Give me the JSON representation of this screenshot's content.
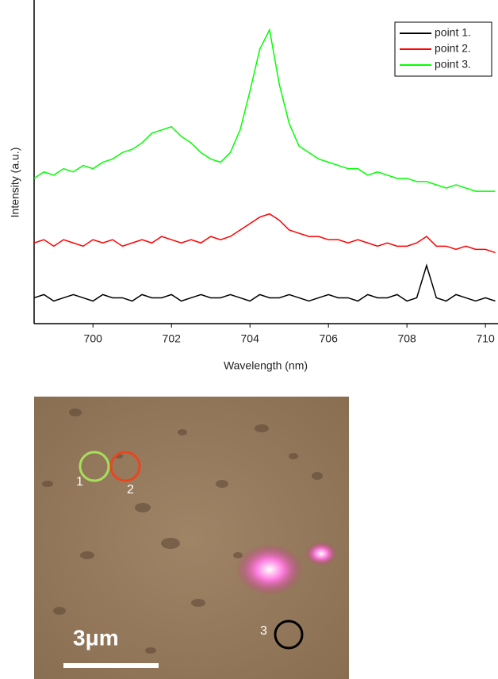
{
  "chart_data": {
    "type": "line",
    "x_label": "Wavelength (nm)",
    "y_label": "Intensity (a.u.)",
    "x": [
      698.5,
      698.75,
      699,
      699.25,
      699.5,
      699.75,
      700,
      700.25,
      700.5,
      700.75,
      701,
      701.25,
      701.5,
      701.75,
      702,
      702.25,
      702.5,
      702.75,
      703,
      703.25,
      703.5,
      703.75,
      704,
      704.25,
      704.5,
      704.75,
      705,
      705.25,
      705.5,
      705.75,
      706,
      706.25,
      706.5,
      706.75,
      707,
      707.25,
      707.5,
      707.75,
      708,
      708.25,
      708.5,
      708.75,
      709,
      709.25,
      709.5,
      709.75,
      710,
      710.25
    ],
    "series": [
      {
        "name": "point 1.",
        "color": "#000000",
        "values": [
          8,
          9,
          7,
          8,
          9,
          8,
          7,
          9,
          8,
          8,
          7,
          9,
          8,
          8,
          9,
          7,
          8,
          9,
          8,
          8,
          9,
          8,
          7,
          9,
          8,
          8,
          9,
          8,
          7,
          8,
          9,
          8,
          8,
          7,
          9,
          8,
          8,
          9,
          7,
          8,
          18,
          8,
          7,
          9,
          8,
          7,
          8,
          7
        ]
      },
      {
        "name": "point 2.",
        "color": "#ff0000",
        "values": [
          25,
          26,
          24,
          26,
          25,
          24,
          26,
          25,
          26,
          24,
          25,
          26,
          25,
          27,
          26,
          25,
          26,
          25,
          27,
          26,
          27,
          29,
          31,
          33,
          34,
          32,
          29,
          28,
          27,
          27,
          26,
          26,
          25,
          26,
          25,
          24,
          25,
          24,
          24,
          25,
          27,
          24,
          24,
          23,
          24,
          23,
          23,
          22
        ]
      },
      {
        "name": "point 3.",
        "color": "#00ff00",
        "values": [
          45,
          47,
          46,
          48,
          47,
          49,
          48,
          50,
          51,
          53,
          54,
          56,
          59,
          60,
          61,
          58,
          56,
          53,
          51,
          50,
          53,
          60,
          72,
          85,
          91,
          74,
          62,
          55,
          53,
          51,
          50,
          49,
          48,
          48,
          46,
          47,
          46,
          45,
          45,
          44,
          44,
          43,
          42,
          43,
          42,
          41,
          41,
          41
        ]
      }
    ],
    "xlim": [
      698.5,
      710.3
    ],
    "xticks": [
      700,
      702,
      704,
      706,
      708,
      710
    ],
    "ylim": [
      0,
      100
    ],
    "legend": "upper right"
  },
  "image": {
    "labels": [
      "1",
      "2",
      "3"
    ],
    "scale_bar": "3μm"
  }
}
